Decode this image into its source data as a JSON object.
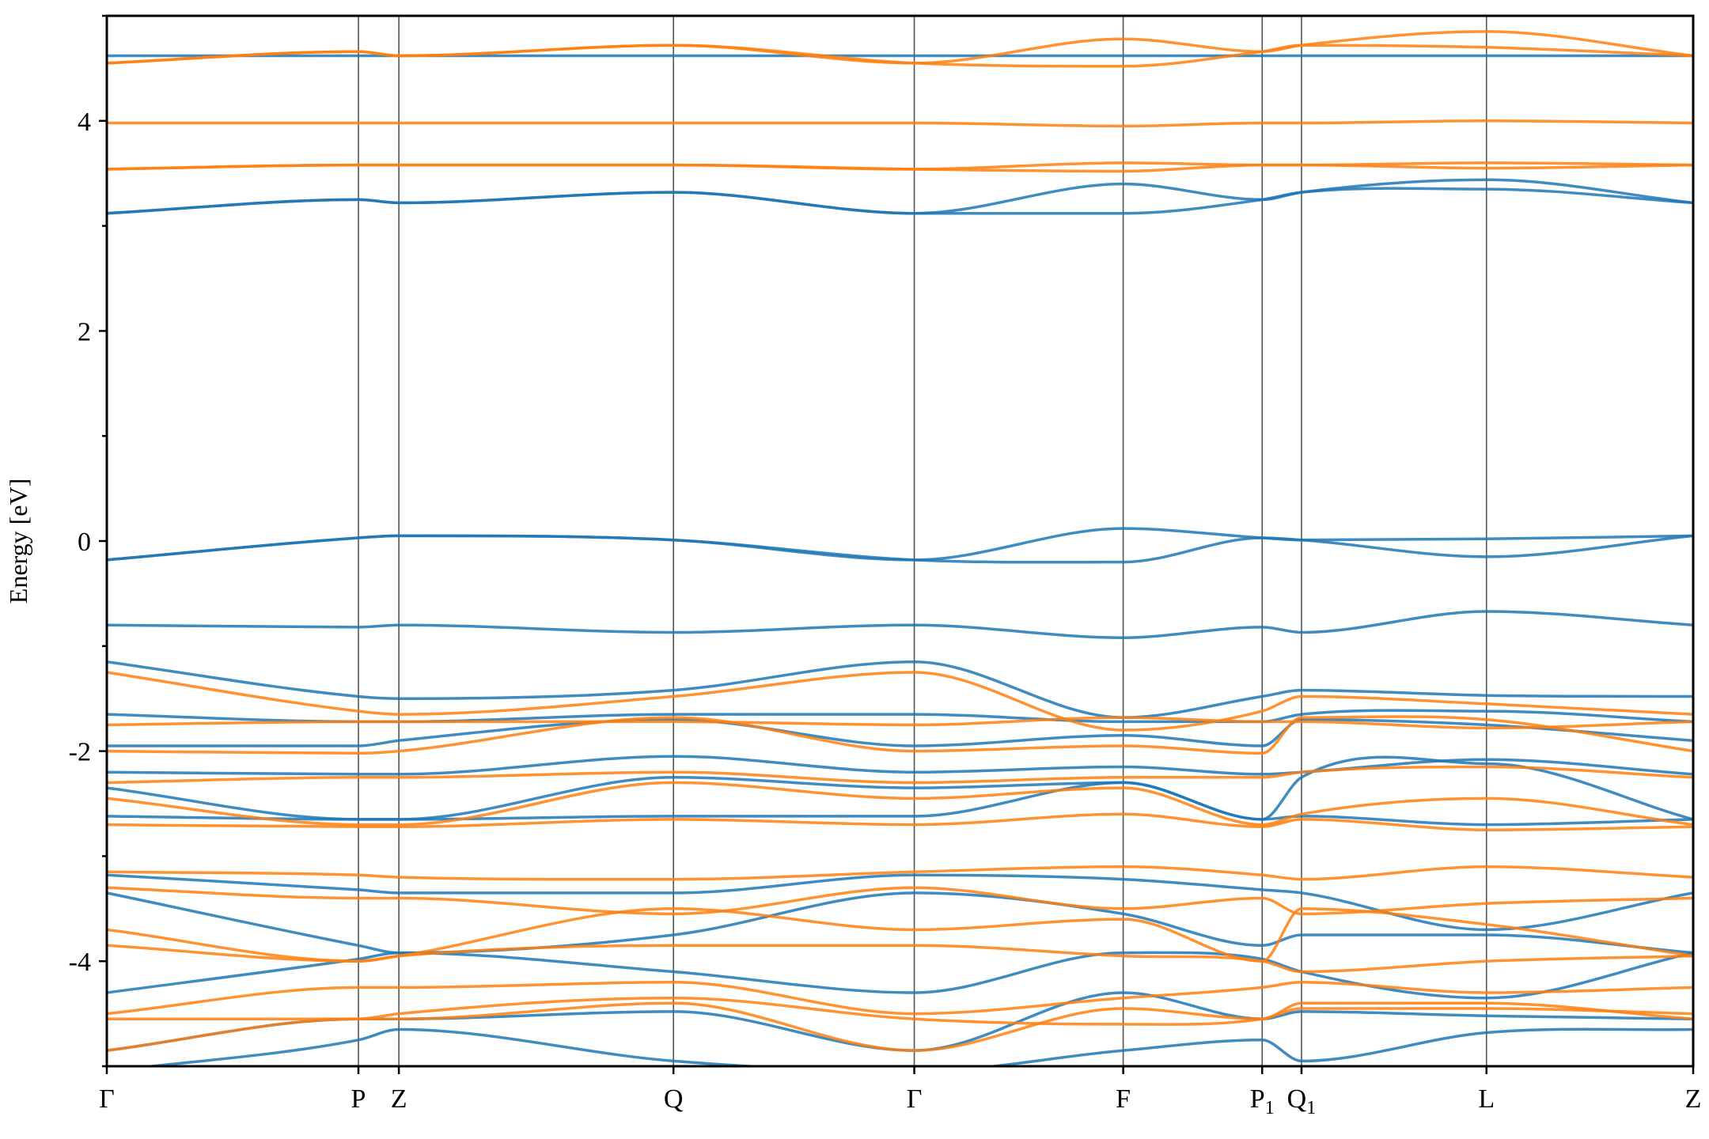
{
  "chart_data": {
    "type": "line",
    "title": "",
    "xlabel": "",
    "ylabel": "Energy [eV]",
    "ylim": [
      -5,
      5
    ],
    "grid": false,
    "colors": {
      "up": "#1f77b4",
      "down": "#ff7f0e"
    },
    "yticks": [
      {
        "value": 4,
        "label": "4"
      },
      {
        "value": 2,
        "label": "2"
      },
      {
        "value": 0,
        "label": "0"
      },
      {
        "value": -2,
        "label": "-2"
      },
      {
        "value": -4,
        "label": "-4"
      }
    ],
    "kpoints": [
      {
        "pos": 0.0,
        "label": "Γ",
        "sub": ""
      },
      {
        "pos": 0.1586,
        "label": "P",
        "sub": ""
      },
      {
        "pos": 0.1841,
        "label": "Z",
        "sub": ""
      },
      {
        "pos": 0.3572,
        "label": "Q",
        "sub": ""
      },
      {
        "pos": 0.509,
        "label": "Γ",
        "sub": ""
      },
      {
        "pos": 0.6407,
        "label": "F",
        "sub": ""
      },
      {
        "pos": 0.7283,
        "label": "P",
        "sub": "1"
      },
      {
        "pos": 0.7531,
        "label": "Q",
        "sub": "1"
      },
      {
        "pos": 0.8697,
        "label": "L",
        "sub": ""
      },
      {
        "pos": 1.0,
        "label": "Z",
        "sub": ""
      }
    ],
    "series": [
      {
        "spin": "up",
        "values": [
          4.62,
          4.62,
          4.62,
          4.62,
          4.62,
          4.62,
          4.62,
          4.62,
          4.62,
          4.62
        ]
      },
      {
        "spin": "up",
        "values": [
          3.12,
          3.25,
          3.22,
          3.32,
          3.12,
          3.4,
          3.25,
          3.32,
          3.44,
          3.22
        ]
      },
      {
        "spin": "up",
        "values": [
          3.12,
          3.25,
          3.22,
          3.32,
          3.12,
          3.12,
          3.25,
          3.32,
          3.35,
          3.22
        ]
      },
      {
        "spin": "up",
        "values": [
          -0.18,
          0.03,
          0.05,
          0.01,
          -0.18,
          0.12,
          0.03,
          0.01,
          0.02,
          0.05
        ]
      },
      {
        "spin": "up",
        "values": [
          -0.18,
          0.03,
          0.05,
          0.01,
          -0.18,
          -0.2,
          0.03,
          0.01,
          -0.15,
          0.05
        ]
      },
      {
        "spin": "up",
        "values": [
          -0.8,
          -0.82,
          -0.8,
          -0.87,
          -0.8,
          -0.92,
          -0.82,
          -0.87,
          -0.67,
          -0.8
        ]
      },
      {
        "spin": "up",
        "values": [
          -1.15,
          -1.48,
          -1.5,
          -1.42,
          -1.15,
          -1.68,
          -1.48,
          -1.42,
          -1.47,
          -1.48
        ]
      },
      {
        "spin": "up",
        "values": [
          -1.65,
          -1.72,
          -1.72,
          -1.65,
          -1.65,
          -1.72,
          -1.72,
          -1.65,
          -1.62,
          -1.72
        ]
      },
      {
        "spin": "up",
        "values": [
          -1.95,
          -1.95,
          -1.9,
          -1.7,
          -1.95,
          -1.85,
          -1.95,
          -1.7,
          -1.75,
          -1.9
        ]
      },
      {
        "spin": "up",
        "values": [
          -2.2,
          -2.22,
          -2.22,
          -2.05,
          -2.2,
          -2.15,
          -2.22,
          -2.2,
          -2.08,
          -2.22
        ]
      },
      {
        "spin": "up",
        "values": [
          -2.35,
          -2.65,
          -2.65,
          -2.25,
          -2.35,
          -2.3,
          -2.65,
          -2.25,
          -2.12,
          -2.65
        ]
      },
      {
        "spin": "up",
        "values": [
          -2.62,
          -2.65,
          -2.65,
          -2.62,
          -2.62,
          -2.3,
          -2.65,
          -2.62,
          -2.7,
          -2.65
        ]
      },
      {
        "spin": "up",
        "values": [
          -3.18,
          -3.32,
          -3.35,
          -3.35,
          -3.18,
          -3.22,
          -3.32,
          -3.35,
          -3.7,
          -3.35
        ]
      },
      {
        "spin": "up",
        "values": [
          -3.35,
          -3.85,
          -3.92,
          -3.75,
          -3.35,
          -3.55,
          -3.85,
          -3.75,
          -3.75,
          -3.92
        ]
      },
      {
        "spin": "up",
        "values": [
          -4.3,
          -3.98,
          -3.92,
          -4.1,
          -4.3,
          -3.92,
          -3.98,
          -4.1,
          -4.35,
          -3.92
        ]
      },
      {
        "spin": "up",
        "values": [
          -4.85,
          -4.55,
          -4.55,
          -4.48,
          -4.85,
          -4.3,
          -4.55,
          -4.48,
          -4.52,
          -4.55
        ]
      },
      {
        "spin": "up",
        "values": [
          -5.05,
          -4.75,
          -4.65,
          -4.95,
          -5.05,
          -4.85,
          -4.75,
          -4.95,
          -4.68,
          -4.65
        ]
      },
      {
        "spin": "down",
        "values": [
          4.55,
          4.66,
          4.62,
          4.72,
          4.55,
          4.78,
          4.66,
          4.72,
          4.85,
          4.62
        ]
      },
      {
        "spin": "down",
        "values": [
          4.55,
          4.66,
          4.62,
          4.72,
          4.55,
          4.52,
          4.66,
          4.72,
          4.7,
          4.62
        ]
      },
      {
        "spin": "down",
        "values": [
          3.98,
          3.98,
          3.98,
          3.98,
          3.98,
          3.95,
          3.98,
          3.98,
          4.0,
          3.98
        ]
      },
      {
        "spin": "down",
        "values": [
          3.54,
          3.58,
          3.58,
          3.58,
          3.54,
          3.6,
          3.58,
          3.58,
          3.6,
          3.58
        ]
      },
      {
        "spin": "down",
        "values": [
          3.54,
          3.58,
          3.58,
          3.58,
          3.54,
          3.52,
          3.58,
          3.58,
          3.55,
          3.58
        ]
      },
      {
        "spin": "down",
        "values": [
          -1.25,
          -1.62,
          -1.65,
          -1.48,
          -1.25,
          -1.8,
          -1.62,
          -1.48,
          -1.55,
          -1.65
        ]
      },
      {
        "spin": "down",
        "values": [
          -1.75,
          -1.72,
          -1.72,
          -1.72,
          -1.75,
          -1.68,
          -1.72,
          -1.72,
          -1.78,
          -1.72
        ]
      },
      {
        "spin": "down",
        "values": [
          -2.0,
          -2.02,
          -2.0,
          -1.68,
          -2.0,
          -1.95,
          -2.02,
          -1.68,
          -1.7,
          -2.0
        ]
      },
      {
        "spin": "down",
        "values": [
          -2.3,
          -2.25,
          -2.25,
          -2.2,
          -2.3,
          -2.25,
          -2.25,
          -2.2,
          -2.15,
          -2.25
        ]
      },
      {
        "spin": "down",
        "values": [
          -2.45,
          -2.7,
          -2.7,
          -2.3,
          -2.45,
          -2.35,
          -2.7,
          -2.6,
          -2.45,
          -2.7
        ]
      },
      {
        "spin": "down",
        "values": [
          -2.7,
          -2.72,
          -2.72,
          -2.65,
          -2.7,
          -2.6,
          -2.72,
          -2.65,
          -2.75,
          -2.72
        ]
      },
      {
        "spin": "down",
        "values": [
          -3.15,
          -3.18,
          -3.2,
          -3.22,
          -3.15,
          -3.1,
          -3.18,
          -3.22,
          -3.1,
          -3.2
        ]
      },
      {
        "spin": "down",
        "values": [
          -3.3,
          -3.4,
          -3.4,
          -3.55,
          -3.3,
          -3.5,
          -3.4,
          -3.55,
          -3.45,
          -3.4
        ]
      },
      {
        "spin": "down",
        "values": [
          -3.7,
          -4.0,
          -3.95,
          -3.5,
          -3.7,
          -3.6,
          -4.0,
          -3.5,
          -3.65,
          -3.95
        ]
      },
      {
        "spin": "down",
        "values": [
          -3.85,
          -4.0,
          -3.95,
          -3.85,
          -3.85,
          -3.95,
          -4.0,
          -4.1,
          -4.0,
          -3.95
        ]
      },
      {
        "spin": "down",
        "values": [
          -4.5,
          -4.25,
          -4.25,
          -4.2,
          -4.5,
          -4.35,
          -4.25,
          -4.2,
          -4.3,
          -4.25
        ]
      },
      {
        "spin": "down",
        "values": [
          -4.55,
          -4.55,
          -4.5,
          -4.35,
          -4.55,
          -4.6,
          -4.55,
          -4.45,
          -4.45,
          -4.5
        ]
      },
      {
        "spin": "down",
        "values": [
          -4.85,
          -4.55,
          -4.55,
          -4.4,
          -4.85,
          -4.45,
          -4.55,
          -4.4,
          -4.4,
          -4.55
        ]
      }
    ]
  }
}
